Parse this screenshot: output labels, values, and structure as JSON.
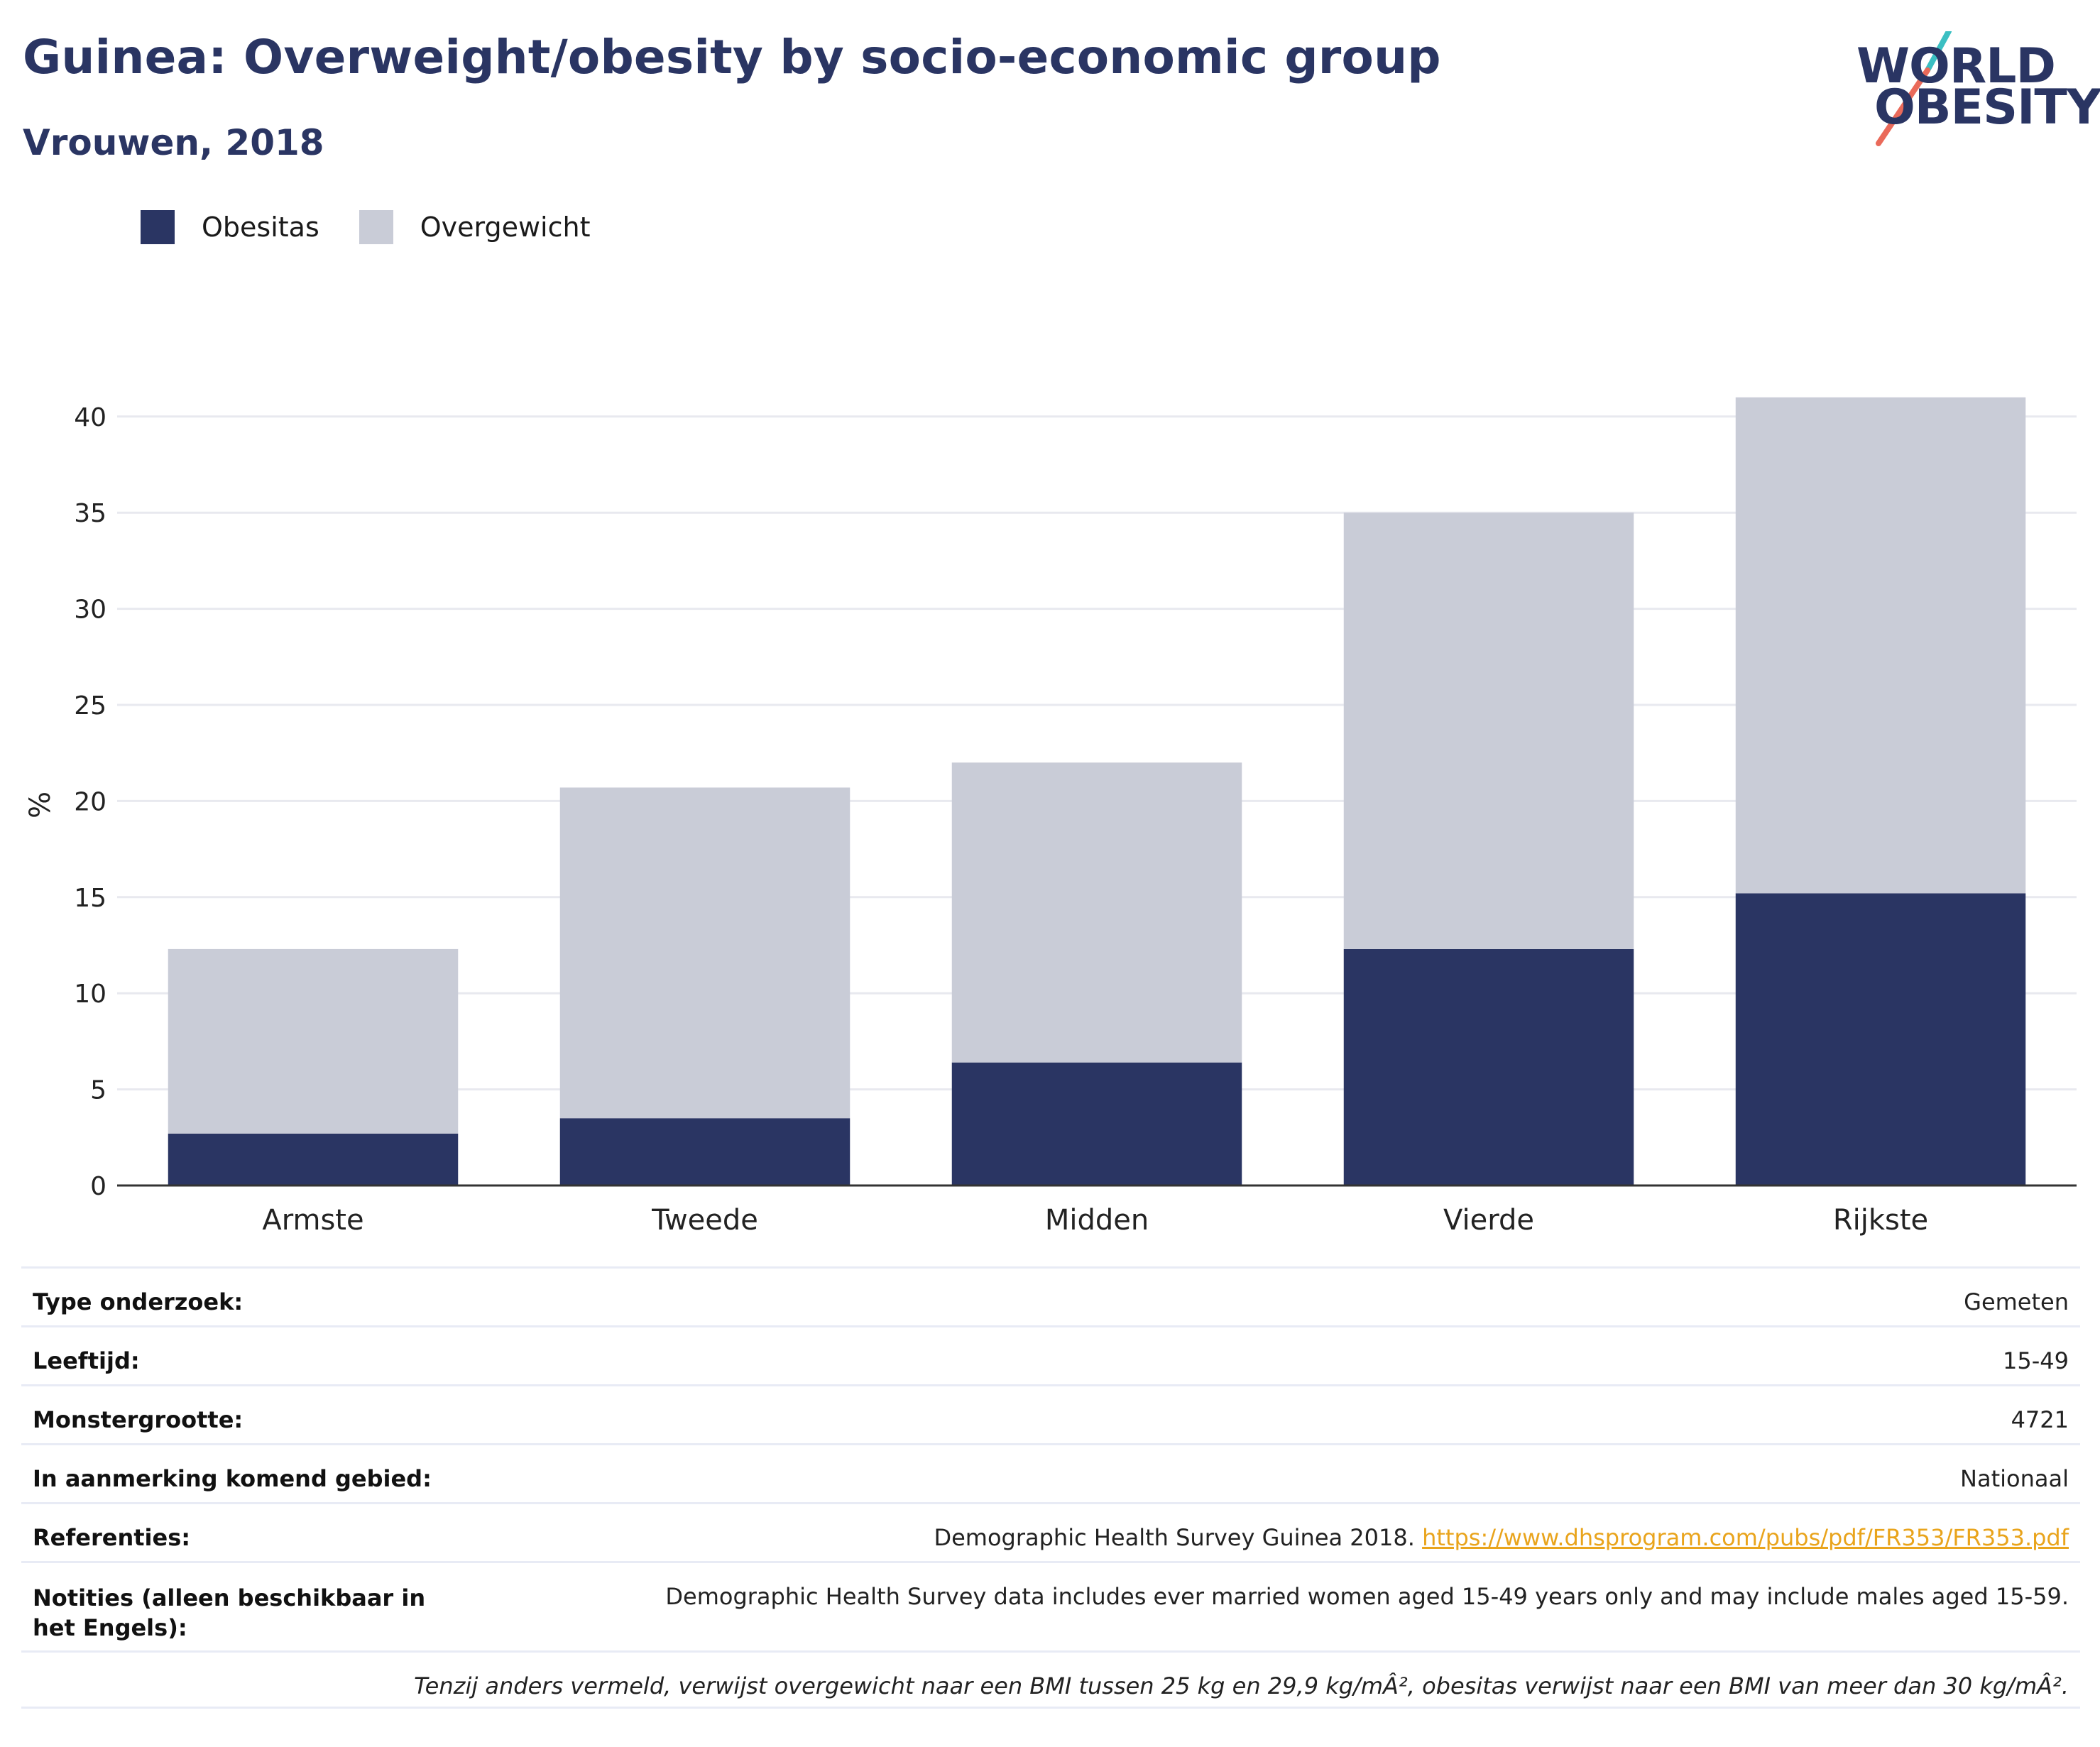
{
  "header": {
    "title": "Guinea: Overweight/obesity by socio-economic group",
    "subtitle": "Vrouwen, 2018"
  },
  "logo": {
    "line1": "WORLD",
    "line2": "OBESITY",
    "accent_teal": "#3bbfc2",
    "accent_coral": "#ea6a5a"
  },
  "colors": {
    "obesity": "#2a3563",
    "overweight": "#c9ccd7",
    "axis": "#333333",
    "grid": "#e8e9ef"
  },
  "legend": {
    "obesity_label": "Obesitas",
    "overweight_label": "Overgewicht"
  },
  "chart_data": {
    "type": "bar",
    "stacked": true,
    "categories": [
      "Armste",
      "Tweede",
      "Midden",
      "Vierde",
      "Rijkste"
    ],
    "series": [
      {
        "name": "Obesitas",
        "values": [
          2.7,
          3.5,
          6.4,
          12.3,
          15.2
        ]
      },
      {
        "name": "Overgewicht",
        "values": [
          9.6,
          17.2,
          15.6,
          22.7,
          25.8
        ]
      }
    ],
    "ylabel": "%",
    "ylim": [
      0,
      41
    ],
    "yticks": [
      0,
      5,
      10,
      15,
      20,
      25,
      30,
      35,
      40
    ],
    "grid": true,
    "legend_position": "top-left"
  },
  "meta": {
    "survey_type_label": "Type onderzoek:",
    "survey_type_value": "Gemeten",
    "age_label": "Leeftijd:",
    "age_value": "15-49",
    "sample_label": "Monstergrootte:",
    "sample_value": "4721",
    "area_label": "In aanmerking komend gebied:",
    "area_value": "Nationaal",
    "refs_label": "Referenties:",
    "refs_text": "Demographic Health Survey Guinea 2018.",
    "refs_link": "https://www.dhsprogram.com/pubs/pdf/FR353/FR353.pdf",
    "notes_label": "Notities (alleen beschikbaar in het Engels):",
    "notes_value": "Demographic Health Survey data includes ever married women aged 15-49 years only and may include males aged 15-59.",
    "footnote": "Tenzij anders vermeld, verwijst overgewicht naar een BMI tussen 25 kg en 29,9 kg/mÂ², obesitas verwijst naar een BMI van meer dan 30 kg/mÂ²."
  }
}
